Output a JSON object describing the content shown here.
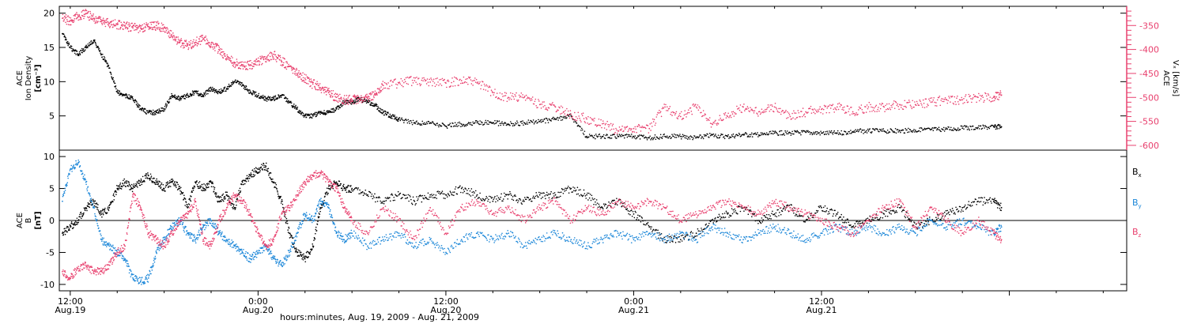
{
  "chart_data": [
    {
      "type": "scatter",
      "panel": "top",
      "left_axis": {
        "label_lines": [
          "ACE",
          "Ion Density",
          "[cm⁻³]"
        ],
        "ylim": [
          0,
          21
        ],
        "ticks": [
          "5",
          "10",
          "15",
          "20"
        ],
        "tick_values": [
          5,
          10,
          15,
          20
        ]
      },
      "right_axis": {
        "label_lines": [
          "ACE",
          "Vₓ [km/s]"
        ],
        "ylim": [
          -610,
          -310
        ],
        "ticks": [
          "-350",
          "-400",
          "-450",
          "-500",
          "-550",
          "-600"
        ],
        "tick_values": [
          -350,
          -400,
          -450,
          -500,
          -550,
          -600
        ],
        "color": "#e8406e"
      },
      "series": [
        {
          "color": "#000000",
          "axis": "left",
          "x": [
            11.5,
            12,
            12.5,
            13,
            13.5,
            14,
            14.5,
            15,
            15.5,
            16,
            16.5,
            17,
            17.5,
            18,
            18.5,
            19,
            19.5,
            20,
            20.5,
            21,
            21.5,
            22,
            22.5,
            23,
            23.5,
            24,
            24.5,
            25,
            25.5,
            26,
            26.5,
            27,
            27.5,
            28,
            28.5,
            29,
            29.5,
            30,
            30.5,
            31,
            31.5,
            32,
            32.5,
            33,
            34,
            35,
            36,
            37,
            38,
            39,
            40,
            41,
            42,
            43,
            44,
            45,
            46,
            47,
            48,
            49,
            50,
            51,
            52,
            53,
            54,
            55,
            56,
            57,
            58,
            59,
            60,
            61,
            62,
            63,
            64,
            65,
            66,
            67,
            68,
            69,
            70,
            71,
            71.5
          ],
          "y": [
            17,
            15,
            14,
            15,
            16,
            14,
            12,
            8.5,
            8,
            7.5,
            6,
            5.5,
            5.5,
            6,
            8,
            7.5,
            8,
            8.5,
            8,
            9,
            8.5,
            9,
            10,
            9.5,
            8.5,
            8,
            7.5,
            7.5,
            8,
            7,
            6,
            5,
            5,
            5.5,
            5.5,
            6,
            7,
            7,
            7.5,
            7,
            6.5,
            5.5,
            5,
            4.5,
            4,
            4,
            3.5,
            3.8,
            4,
            4,
            3.8,
            4,
            4.2,
            4.5,
            5,
            2,
            2,
            2,
            2,
            1.8,
            2,
            2,
            1.8,
            2.2,
            2,
            2.3,
            2.2,
            2.5,
            2.5,
            2.6,
            2.5,
            2.5,
            2.7,
            2.8,
            2.8,
            2.8,
            2.9,
            3,
            3.1,
            3.2,
            3.3,
            3.4,
            3.4
          ]
        },
        {
          "color": "#e8406e",
          "axis": "right",
          "x": [
            11.5,
            12,
            12.5,
            13,
            13.5,
            14,
            14.5,
            15,
            15.5,
            16,
            16.5,
            17,
            17.5,
            18,
            18.5,
            19,
            19.5,
            20,
            20.5,
            21,
            21.5,
            22,
            22.5,
            23,
            23.5,
            24,
            24.5,
            25,
            25.5,
            26,
            26.5,
            27,
            27.5,
            28,
            28.5,
            29,
            29.5,
            30,
            30.5,
            31,
            31.5,
            32,
            33,
            34,
            35,
            36,
            37,
            38,
            39,
            40,
            41,
            42,
            43,
            44,
            45,
            46,
            47,
            48,
            49,
            50,
            51,
            52,
            53,
            54,
            55,
            56,
            57,
            58,
            59,
            60,
            61,
            62,
            63,
            64,
            65,
            66,
            67,
            68,
            69,
            70,
            71,
            71.5
          ],
          "y": [
            -335,
            -340,
            -330,
            -325,
            -335,
            -340,
            -345,
            -348,
            -350,
            -355,
            -355,
            -352,
            -350,
            -355,
            -372,
            -385,
            -392,
            -385,
            -378,
            -390,
            -400,
            -418,
            -428,
            -432,
            -432,
            -425,
            -420,
            -410,
            -425,
            -435,
            -450,
            -460,
            -472,
            -480,
            -490,
            -500,
            -505,
            -505,
            -502,
            -500,
            -495,
            -475,
            -470,
            -465,
            -468,
            -470,
            -465,
            -470,
            -490,
            -500,
            -500,
            -515,
            -520,
            -535,
            -545,
            -555,
            -570,
            -565,
            -565,
            -520,
            -540,
            -520,
            -555,
            -540,
            -520,
            -530,
            -520,
            -540,
            -530,
            -525,
            -520,
            -530,
            -520,
            -520,
            -515,
            -515,
            -510,
            -505,
            -505,
            -500,
            -500,
            -495
          ]
        }
      ]
    },
    {
      "type": "scatter",
      "panel": "bottom",
      "left_axis": {
        "label_lines": [
          "ACE",
          "B",
          "[nT]"
        ],
        "ylim": [
          -11,
          11
        ],
        "ticks": [
          "10",
          "5",
          "0",
          "-5",
          "-10"
        ],
        "tick_values": [
          10,
          5,
          0,
          -5,
          -10
        ]
      },
      "zero_line": true,
      "legend_position": "right",
      "series": [
        {
          "name": "Bx",
          "name_base": "B",
          "name_sub": "x",
          "color": "#000000",
          "x": [
            11.5,
            12,
            12.5,
            13,
            13.5,
            14,
            14.5,
            15,
            15.5,
            16,
            16.5,
            17,
            17.5,
            18,
            18.5,
            19,
            19.5,
            20,
            20.5,
            21,
            21.5,
            22,
            22.5,
            23,
            23.5,
            24,
            24.5,
            25,
            25.5,
            26,
            26.5,
            27,
            27.5,
            28,
            28.5,
            29,
            29.5,
            30,
            31,
            32,
            33,
            34,
            35,
            36,
            37,
            38,
            39,
            40,
            41,
            42,
            43,
            44,
            45,
            46,
            47,
            48,
            49,
            50,
            51,
            52,
            53,
            54,
            55,
            56,
            57,
            58,
            59,
            60,
            61,
            62,
            63,
            64,
            65,
            66,
            67,
            68,
            69,
            70,
            71,
            71.5
          ],
          "y": [
            -2,
            -1,
            0,
            2,
            3,
            1,
            2,
            5,
            6,
            5,
            6,
            7,
            6,
            5,
            6,
            5,
            2,
            6,
            5,
            6,
            3,
            4,
            2,
            6,
            7,
            8,
            8.5,
            6,
            3,
            -2,
            -5,
            -6,
            -4,
            2,
            5,
            6,
            5,
            5,
            4,
            3,
            4,
            3,
            4,
            4,
            5,
            4,
            3,
            4,
            3,
            4,
            4,
            5,
            4,
            2,
            3,
            1,
            -1,
            -3,
            -3,
            -2,
            0,
            1,
            2,
            0,
            1,
            2,
            0,
            2,
            1,
            -1,
            0,
            1,
            2,
            -1,
            0,
            1,
            2,
            3,
            3,
            2
          ]
        },
        {
          "name": "By",
          "name_base": "B",
          "name_sub": "y",
          "color": "#1a86d8",
          "x": [
            11.5,
            12,
            12.5,
            13,
            13.5,
            14,
            14.5,
            15,
            15.5,
            16,
            16.5,
            17,
            17.5,
            18,
            18.5,
            19,
            19.5,
            20,
            20.5,
            21,
            21.5,
            22,
            22.5,
            23,
            23.5,
            24,
            24.5,
            25,
            25.5,
            26,
            26.5,
            27,
            27.5,
            28,
            28.5,
            29,
            29.5,
            30,
            31,
            32,
            33,
            34,
            35,
            36,
            37,
            38,
            39,
            40,
            41,
            42,
            43,
            44,
            45,
            46,
            47,
            48,
            49,
            50,
            51,
            52,
            53,
            54,
            55,
            56,
            57,
            58,
            59,
            60,
            61,
            62,
            63,
            64,
            65,
            66,
            67,
            68,
            69,
            70,
            71,
            71.5
          ],
          "y": [
            3,
            8,
            9,
            6,
            2,
            -3,
            -4,
            -5,
            -6,
            -9,
            -9.5,
            -9,
            -5,
            -3,
            -1,
            0,
            -2,
            -3,
            -1,
            0,
            -2,
            -3,
            -4,
            -5,
            -6,
            -5,
            -4,
            -6,
            -7,
            -5,
            -2,
            1,
            0,
            3,
            2,
            -2,
            -3,
            -2,
            -4,
            -3,
            -2,
            -4,
            -3,
            -5,
            -3,
            -2,
            -3,
            -2,
            -4,
            -3,
            -2,
            -3,
            -4,
            -3,
            -2,
            -3,
            -2,
            -3,
            -2,
            -3,
            -1,
            -2,
            -3,
            -2,
            -1,
            -2,
            -3,
            -2,
            -1,
            -2,
            -1,
            -2,
            -1,
            -2,
            0,
            -1,
            0,
            -1,
            -2,
            -1
          ]
        },
        {
          "name": "Bz",
          "name_base": "B",
          "name_sub": "z",
          "color": "#e8406e",
          "x": [
            11.5,
            12,
            12.5,
            13,
            13.5,
            14,
            14.5,
            15,
            15.5,
            16,
            16.5,
            17,
            17.5,
            18,
            18.5,
            19,
            19.5,
            20,
            20.5,
            21,
            21.5,
            22,
            22.5,
            23,
            23.5,
            24,
            24.5,
            25,
            25.5,
            26,
            26.5,
            27,
            27.5,
            28,
            28.5,
            29,
            29.5,
            30,
            31,
            32,
            33,
            34,
            35,
            36,
            37,
            38,
            39,
            40,
            41,
            42,
            43,
            44,
            45,
            46,
            47,
            48,
            49,
            50,
            51,
            52,
            53,
            54,
            55,
            56,
            57,
            58,
            59,
            60,
            61,
            62,
            63,
            64,
            65,
            66,
            67,
            68,
            69,
            70,
            71,
            71.5
          ],
          "y": [
            -8,
            -9,
            -7.5,
            -7,
            -8,
            -8,
            -7,
            -5,
            -4,
            4,
            2,
            -2,
            -3,
            -4,
            -2,
            0,
            1,
            3,
            -3,
            -4,
            0,
            2,
            4,
            3,
            1,
            -2,
            -4,
            -3,
            1,
            2,
            4,
            6,
            7,
            7.5,
            6,
            5,
            2,
            0,
            -2,
            2,
            0,
            -3,
            2,
            -2,
            2,
            3,
            1,
            2,
            0,
            2,
            3,
            0,
            2,
            1,
            3,
            2,
            3,
            2,
            0,
            1,
            2,
            3,
            2,
            1,
            3,
            2,
            1,
            0,
            -1,
            -2,
            0,
            2,
            3,
            -1,
            2,
            0,
            -2,
            0,
            -2,
            -3
          ]
        }
      ]
    }
  ],
  "x_axis": {
    "range_hours": [
      11.3,
      79.5
    ],
    "ticks": [
      {
        "hour": 12,
        "time": "12:00",
        "date": "Aug.19"
      },
      {
        "hour": 24,
        "time": "0:00",
        "date": "Aug.20"
      },
      {
        "hour": 36,
        "time": "12:00",
        "date": "Aug.20"
      },
      {
        "hour": 48,
        "time": "0:00",
        "date": "Aug.21"
      },
      {
        "hour": 60,
        "time": "12:00",
        "date": "Aug.21"
      }
    ],
    "label": "hours:minutes, Aug. 19, 2009 - Aug. 21, 2009"
  }
}
